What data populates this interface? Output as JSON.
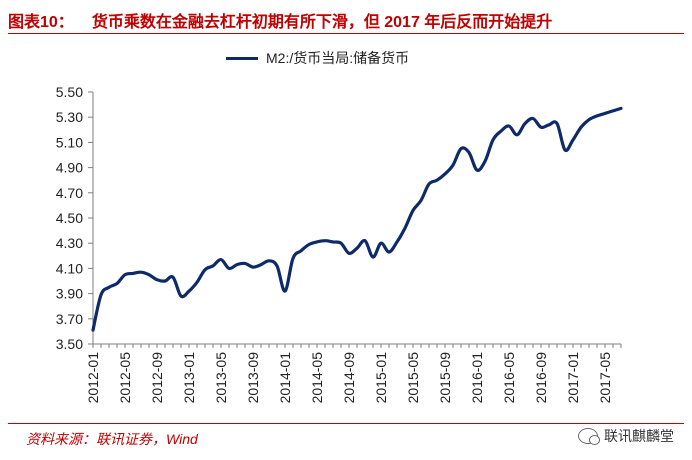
{
  "header": {
    "figure_no": "图表10：",
    "title": "货币乘数在金融去杠杆初期有所下滑，但 2017 年后反而开始提升"
  },
  "footer": {
    "source": "资料来源：联讯证券，Wind",
    "watermark": "联讯麒麟堂"
  },
  "chart_data": {
    "type": "line",
    "title": "",
    "xlabel": "",
    "ylabel": "",
    "ylim": [
      3.5,
      5.5
    ],
    "yticks": [
      "3.50",
      "3.70",
      "3.90",
      "4.10",
      "4.30",
      "4.50",
      "4.70",
      "4.90",
      "5.10",
      "5.30",
      "5.50"
    ],
    "xlim": [
      "2012-01",
      "2017-07"
    ],
    "xticks": [
      "2012-01",
      "2012-05",
      "2012-09",
      "2013-01",
      "2013-05",
      "2013-09",
      "2014-01",
      "2014-05",
      "2014-09",
      "2015-01",
      "2015-05",
      "2015-09",
      "2016-01",
      "2016-05",
      "2016-09",
      "2017-01",
      "2017-05"
    ],
    "grid": false,
    "legend": "top-center",
    "color": "#0e2a6b",
    "series": [
      {
        "name": "M2:/货币当局:储备货币",
        "x": [
          "2012-01",
          "2012-02",
          "2012-03",
          "2012-04",
          "2012-05",
          "2012-06",
          "2012-07",
          "2012-08",
          "2012-09",
          "2012-10",
          "2012-11",
          "2012-12",
          "2013-01",
          "2013-02",
          "2013-03",
          "2013-04",
          "2013-05",
          "2013-06",
          "2013-07",
          "2013-08",
          "2013-09",
          "2013-10",
          "2013-11",
          "2013-12",
          "2014-01",
          "2014-02",
          "2014-03",
          "2014-04",
          "2014-05",
          "2014-06",
          "2014-07",
          "2014-08",
          "2014-09",
          "2014-10",
          "2014-11",
          "2014-12",
          "2015-01",
          "2015-02",
          "2015-03",
          "2015-04",
          "2015-05",
          "2015-06",
          "2015-07",
          "2015-08",
          "2015-09",
          "2015-10",
          "2015-11",
          "2015-12",
          "2016-01",
          "2016-02",
          "2016-03",
          "2016-04",
          "2016-05",
          "2016-06",
          "2016-07",
          "2016-08",
          "2016-09",
          "2016-10",
          "2016-11",
          "2016-12",
          "2017-01",
          "2017-02",
          "2017-03",
          "2017-04",
          "2017-05",
          "2017-06",
          "2017-07"
        ],
        "values": [
          3.61,
          3.89,
          3.95,
          3.98,
          4.05,
          4.06,
          4.07,
          4.05,
          4.01,
          4.0,
          4.03,
          3.88,
          3.92,
          3.99,
          4.09,
          4.12,
          4.17,
          4.1,
          4.13,
          4.14,
          4.11,
          4.13,
          4.16,
          4.12,
          3.92,
          4.18,
          4.24,
          4.29,
          4.31,
          4.32,
          4.31,
          4.3,
          4.22,
          4.26,
          4.32,
          4.19,
          4.3,
          4.23,
          4.31,
          4.42,
          4.56,
          4.64,
          4.77,
          4.8,
          4.85,
          4.92,
          5.05,
          5.02,
          4.88,
          4.95,
          5.12,
          5.19,
          5.23,
          5.16,
          5.25,
          5.29,
          5.22,
          5.24,
          5.25,
          5.04,
          5.12,
          5.22,
          5.28,
          5.31,
          5.33,
          5.35,
          5.37
        ]
      }
    ]
  }
}
